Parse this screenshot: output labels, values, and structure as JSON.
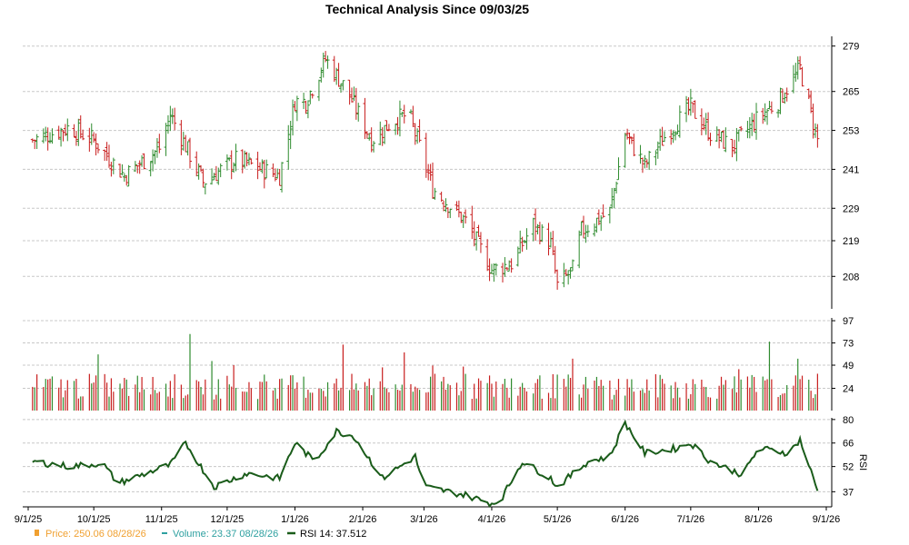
{
  "chart_data": {
    "type": "ohlc",
    "title": "Technical Analysis Since 09/03/25",
    "x_tick_labels": [
      "9/1/25",
      "10/1/25",
      "11/1/25",
      "12/1/25",
      "1/1/26",
      "2/1/26",
      "3/1/26",
      "4/1/26",
      "5/1/26",
      "6/1/26",
      "7/1/26",
      "8/1/26",
      "9/1/26"
    ],
    "x_range": [
      "2025-09-01",
      "2026-09-01"
    ],
    "price_panel": {
      "ylim": [
        198,
        282
      ],
      "y_ticks": [
        208,
        219,
        229,
        241,
        253,
        265,
        279
      ],
      "up_color": "#2e8b2e",
      "down_color": "#c81e1e",
      "key_points": [
        {
          "date": "2025-09-03",
          "close": 250
        },
        {
          "date": "2025-09-20",
          "close": 254
        },
        {
          "date": "2025-10-01",
          "close": 250
        },
        {
          "date": "2025-10-15",
          "close": 239
        },
        {
          "date": "2025-11-01",
          "close": 248
        },
        {
          "date": "2025-11-05",
          "close": 258
        },
        {
          "date": "2025-11-20",
          "close": 237
        },
        {
          "date": "2025-12-05",
          "close": 244
        },
        {
          "date": "2025-12-25",
          "close": 239
        },
        {
          "date": "2026-01-01",
          "close": 262
        },
        {
          "date": "2026-01-06",
          "close": 262
        },
        {
          "date": "2026-01-15",
          "close": 275
        },
        {
          "date": "2026-01-25",
          "close": 265
        },
        {
          "date": "2026-02-05",
          "close": 250
        },
        {
          "date": "2026-02-15",
          "close": 256
        },
        {
          "date": "2026-02-22",
          "close": 258
        },
        {
          "date": "2026-03-01",
          "close": 244
        },
        {
          "date": "2026-03-05",
          "close": 235
        },
        {
          "date": "2026-03-20",
          "close": 225
        },
        {
          "date": "2026-04-01",
          "close": 210
        },
        {
          "date": "2026-04-10",
          "close": 212
        },
        {
          "date": "2026-04-20",
          "close": 224
        },
        {
          "date": "2026-04-28",
          "close": 218
        },
        {
          "date": "2026-05-01",
          "close": 205
        },
        {
          "date": "2026-05-08",
          "close": 210
        },
        {
          "date": "2026-05-12",
          "close": 222
        },
        {
          "date": "2026-05-25",
          "close": 228
        },
        {
          "date": "2026-06-01",
          "close": 252
        },
        {
          "date": "2026-06-10",
          "close": 242
        },
        {
          "date": "2026-06-20",
          "close": 252
        },
        {
          "date": "2026-07-01",
          "close": 260
        },
        {
          "date": "2026-07-10",
          "close": 252
        },
        {
          "date": "2026-07-20",
          "close": 248
        },
        {
          "date": "2026-08-01",
          "close": 257
        },
        {
          "date": "2026-08-10",
          "close": 262
        },
        {
          "date": "2026-08-20",
          "close": 272
        },
        {
          "date": "2026-08-28",
          "close": 250
        }
      ]
    },
    "volume_panel": {
      "ylim": [
        0,
        100
      ],
      "y_ticks": [
        24,
        49,
        73,
        97
      ],
      "color": "#2e9e9e"
    },
    "rsi_panel": {
      "ylim": [
        28,
        81
      ],
      "y_ticks": [
        37,
        52,
        66,
        80
      ],
      "ylabel": "RSI",
      "color": "#1a5c1a",
      "points": [
        {
          "date": "2025-09-03",
          "rsi": 55
        },
        {
          "date": "2025-09-20",
          "rsi": 52
        },
        {
          "date": "2025-10-05",
          "rsi": 54
        },
        {
          "date": "2025-10-12",
          "rsi": 42
        },
        {
          "date": "2025-10-25",
          "rsi": 48
        },
        {
          "date": "2025-11-05",
          "rsi": 53
        },
        {
          "date": "2025-11-12",
          "rsi": 66
        },
        {
          "date": "2025-11-25",
          "rsi": 40
        },
        {
          "date": "2025-12-10",
          "rsi": 48
        },
        {
          "date": "2025-12-25",
          "rsi": 45
        },
        {
          "date": "2026-01-01",
          "rsi": 66
        },
        {
          "date": "2026-01-10",
          "rsi": 55
        },
        {
          "date": "2026-01-20",
          "rsi": 73
        },
        {
          "date": "2026-01-28",
          "rsi": 70
        },
        {
          "date": "2026-02-10",
          "rsi": 45
        },
        {
          "date": "2026-02-25",
          "rsi": 58
        },
        {
          "date": "2026-03-01",
          "rsi": 40
        },
        {
          "date": "2026-03-20",
          "rsi": 35
        },
        {
          "date": "2026-04-01",
          "rsi": 30
        },
        {
          "date": "2026-04-05",
          "rsi": 32
        },
        {
          "date": "2026-04-15",
          "rsi": 55
        },
        {
          "date": "2026-04-28",
          "rsi": 45
        },
        {
          "date": "2026-05-01",
          "rsi": 40
        },
        {
          "date": "2026-05-15",
          "rsi": 55
        },
        {
          "date": "2026-05-25",
          "rsi": 58
        },
        {
          "date": "2026-06-01",
          "rsi": 78
        },
        {
          "date": "2026-06-10",
          "rsi": 60
        },
        {
          "date": "2026-06-25",
          "rsi": 63
        },
        {
          "date": "2026-07-01",
          "rsi": 66
        },
        {
          "date": "2026-07-10",
          "rsi": 55
        },
        {
          "date": "2026-07-25",
          "rsi": 47
        },
        {
          "date": "2026-08-01",
          "rsi": 63
        },
        {
          "date": "2026-08-15",
          "rsi": 60
        },
        {
          "date": "2026-08-20",
          "rsi": 68
        },
        {
          "date": "2026-08-28",
          "rsi": 37.5
        }
      ]
    },
    "legend": [
      {
        "marker": "square",
        "color": "#f0a030",
        "text_color": "#f0a030",
        "label": "Price: 250.06  08/28/26"
      },
      {
        "marker": "dash",
        "color": "#2ea0a0",
        "text_color": "#2ea0a0",
        "label": "Volume: 23.37  08/28/26"
      },
      {
        "marker": "line",
        "color": "#1a5c1a",
        "text_color": "#000000",
        "label": "RSI 14: 37.512"
      }
    ]
  }
}
